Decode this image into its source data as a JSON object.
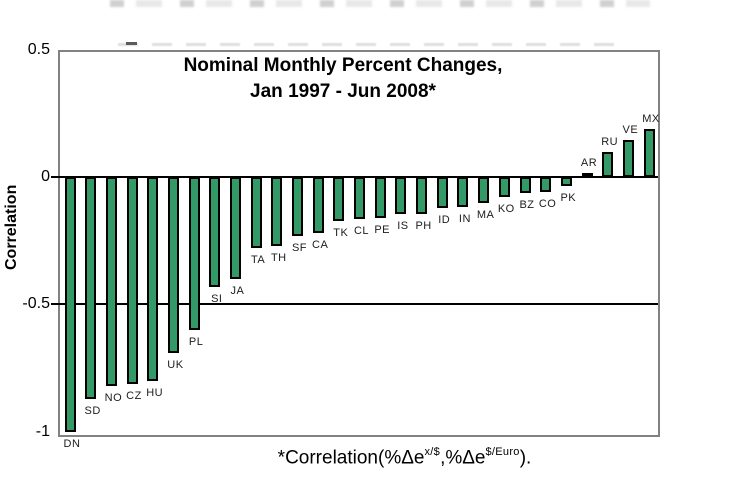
{
  "chart_data": {
    "type": "bar",
    "title": "Nominal Monthly Percent Changes, Jan 1997 - Jun 2008*",
    "title_line1": "Nominal Monthly Percent Changes,",
    "title_line2": "Jan 1997 - Jun 2008*",
    "ylabel": "Correlation",
    "xlabel": "",
    "ylim": [
      -1.02,
      0.5
    ],
    "yticks": [
      0.5,
      0,
      -0.5,
      -1
    ],
    "ytick_labels": [
      "0.5",
      "0",
      "-0.5",
      "-1"
    ],
    "gridlines_at": [
      0,
      -0.5
    ],
    "grid": "horizontal-lines-at-0-and-minus-0.5",
    "legend": "none",
    "bar_color": "#339966",
    "bar_border_color": "#000000",
    "plot_border_color": "#828282",
    "categories": [
      "DN",
      "SD",
      "NO",
      "CZ",
      "HU",
      "UK",
      "PL",
      "SI",
      "JA",
      "TA",
      "TH",
      "SF",
      "CA",
      "TK",
      "CL",
      "PE",
      "IS",
      "PH",
      "ID",
      "IN",
      "MA",
      "KO",
      "BZ",
      "CO",
      "PK",
      "AR",
      "RU",
      "VE",
      "MX"
    ],
    "values": [
      -1.0,
      -0.87,
      -0.82,
      -0.81,
      -0.8,
      -0.69,
      -0.6,
      -0.43,
      -0.4,
      -0.28,
      -0.27,
      -0.23,
      -0.22,
      -0.172,
      -0.166,
      -0.16,
      -0.145,
      -0.143,
      -0.12,
      -0.116,
      -0.102,
      -0.078,
      -0.061,
      -0.059,
      -0.035,
      0.015,
      0.099,
      0.145,
      0.187
    ],
    "footnote": {
      "prefix": "*Correlation(%Δe",
      "sup1": "x/$",
      "mid": ",%Δe",
      "sup2": "$/Euro",
      "suffix": ")."
    }
  }
}
